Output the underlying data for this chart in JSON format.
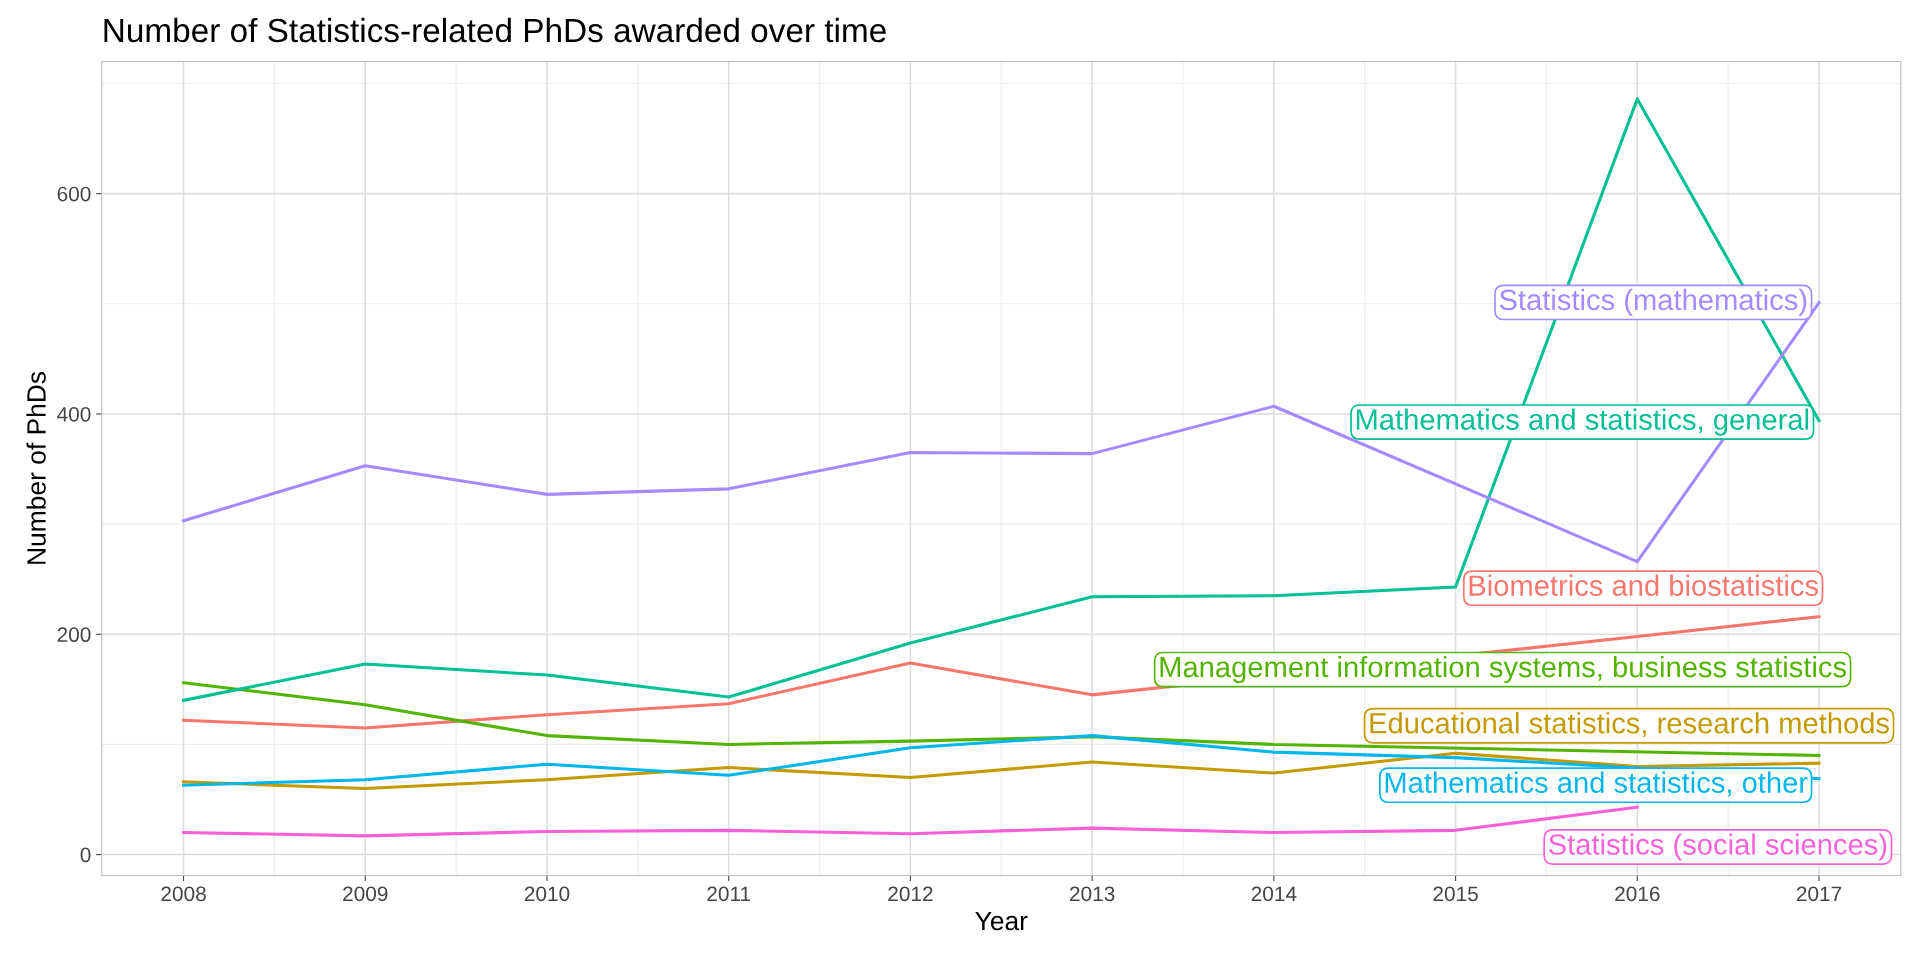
{
  "chart_data": {
    "type": "line",
    "title": "Number of Statistics-related PhDs awarded over time",
    "xlabel": "Year",
    "ylabel": "Number of PhDs",
    "x": [
      2008,
      2009,
      2010,
      2011,
      2012,
      2013,
      2014,
      2015,
      2016,
      2017
    ],
    "xlim": [
      2007.55,
      2017.45
    ],
    "xticks": [
      2008,
      2009,
      2010,
      2011,
      2012,
      2013,
      2014,
      2015,
      2016,
      2017
    ],
    "ylim": [
      -19,
      720
    ],
    "yticks": [
      0,
      200,
      400,
      600
    ],
    "grid": true,
    "legend": false,
    "line_style": "solid",
    "series": [
      {
        "name": "Biometrics and biostatistics",
        "color": "#f8766d",
        "values": [
          122,
          115,
          127,
          137,
          174,
          145,
          null,
          null,
          198,
          216
        ]
      },
      {
        "name": "Educational statistics, research methods",
        "color": "#c49a00",
        "values": [
          66,
          60,
          68,
          79,
          70,
          84,
          74,
          92,
          80,
          83
        ]
      },
      {
        "name": "Management information systems, business statistics",
        "color": "#53b400",
        "values": [
          156,
          136,
          108,
          100,
          103,
          107,
          100,
          null,
          null,
          90
        ]
      },
      {
        "name": "Mathematics and statistics, general",
        "color": "#00c094",
        "values": [
          140,
          173,
          163,
          143,
          192,
          234,
          235,
          243,
          686,
          394
        ]
      },
      {
        "name": "Mathematics and statistics, other",
        "color": "#00b6eb",
        "values": [
          63,
          68,
          82,
          72,
          97,
          108,
          93,
          88,
          null,
          69
        ]
      },
      {
        "name": "Statistics (mathematics)",
        "color": "#a58aff",
        "values": [
          303,
          353,
          327,
          332,
          365,
          364,
          407,
          null,
          266,
          501
        ]
      },
      {
        "name": "Statistics (social sciences)",
        "color": "#fb61d7",
        "values": [
          20,
          17,
          21,
          22,
          19,
          24,
          20,
          22,
          43,
          null
        ]
      }
    ]
  }
}
